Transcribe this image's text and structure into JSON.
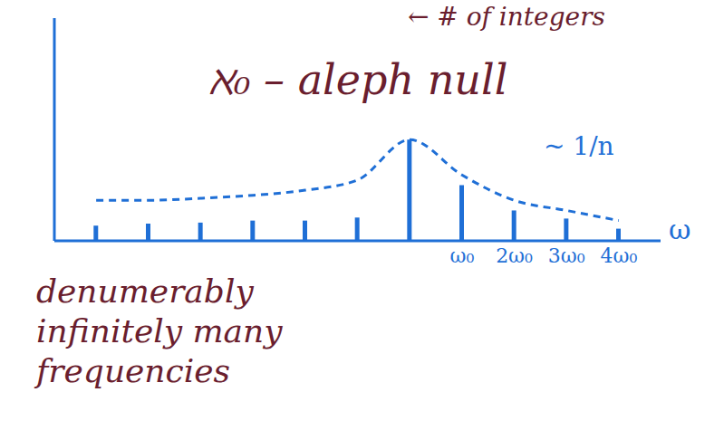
{
  "chart_data": {
    "type": "bar",
    "title": "ℵ₀ – aleph null",
    "annotations": [
      "← # of integers",
      "~ 1/n"
    ],
    "caption": "denumerably infinitely many frequencies",
    "x_label": "ω",
    "x": [
      -6,
      -5,
      -4,
      -3,
      -2,
      -1,
      0,
      1,
      2,
      3,
      4
    ],
    "series": [
      {
        "type": "bar",
        "color": "#1f6fd6",
        "values": [
          0.15,
          0.17,
          0.18,
          0.2,
          0.2,
          0.23,
          1.0,
          0.55,
          0.3,
          0.22,
          0.12
        ]
      },
      {
        "type": "line",
        "line_style": "dashed",
        "color": "#1f6fd6",
        "values": [
          0.4,
          0.4,
          0.42,
          0.45,
          0.5,
          0.6,
          1.0,
          0.65,
          0.4,
          0.3,
          0.2
        ]
      }
    ],
    "xlim": [
      -6.8,
      4.8
    ],
    "xticks": [
      {
        "value": 1,
        "label": "ω₀"
      },
      {
        "value": 2,
        "label": "2ω₀"
      },
      {
        "value": 3,
        "label": "3ω₀"
      },
      {
        "value": 4,
        "label": "4ω₀"
      }
    ],
    "ylim": [
      0,
      2.2
    ],
    "yticks": [],
    "tick_labels": "x",
    "grid": false
  }
}
